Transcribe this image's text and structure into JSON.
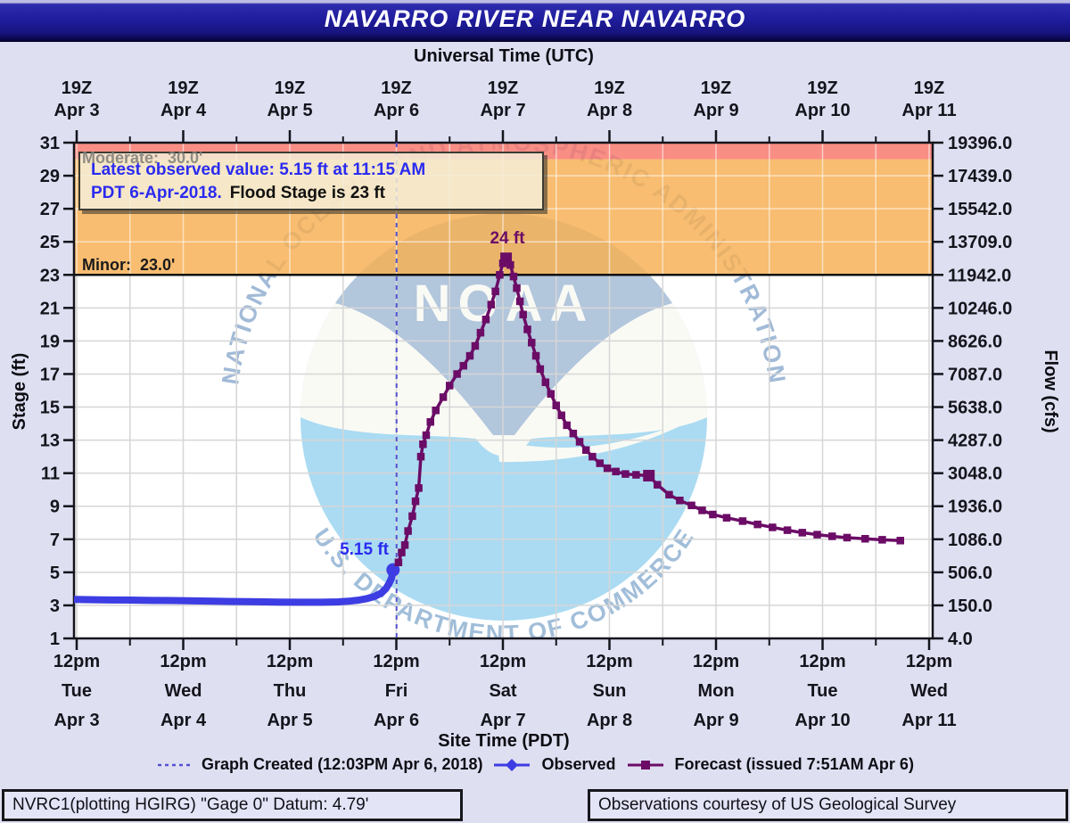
{
  "header": {
    "title": "NAVARRO RIVER NEAR NAVARRO"
  },
  "annotation": {
    "line1": "Latest observed value:  5.15 ft at 11:15 AM",
    "line2_blue": "PDT 6-Apr-2018.",
    "line2_black": "Flood Stage is 23  ft"
  },
  "flood_labels": {
    "moderate": "Moderate:  30.0'",
    "minor": "Minor:  23.0'"
  },
  "point_labels": {
    "peak": "24 ft",
    "latest": "5.15 ft"
  },
  "legend": {
    "created": "Graph Created (12:03PM Apr 6, 2018)",
    "observed": "Observed",
    "forecast": "Forecast (issued 7:51AM Apr 6)"
  },
  "footer": {
    "left": "NVRC1(plotting HGIRG) \"Gage 0\" Datum: 4.79'",
    "right": "Observations courtesy of US Geological Survey"
  },
  "watermark": {
    "name": "NOAA",
    "top": "NATIONAL OCEANIC AND ATMOSPHERIC ADMINISTRATION",
    "bottom": "U.S. DEPARTMENT OF COMMERCE"
  },
  "colors": {
    "page_bg": "#DFDFF2",
    "titlebar": "#1C1A96",
    "observed": "#3D3DE3",
    "forecast": "#6B0C66",
    "created_line": "#5353CE",
    "moderate_zone": "#F8776C",
    "minor_zone": "#F6B054",
    "annotation_bg": "#F4EED8",
    "label_blue": "#2B2BF0",
    "logo_cyan": "#A7DAF2",
    "logo_slate": "#AEC3DB"
  },
  "chart_data": {
    "type": "line",
    "title": "NAVARRO RIVER NEAR NAVARRO",
    "top_axis_label": "Universal Time (UTC)",
    "bottom_axis_label": "Site Time (PDT)",
    "left_axis_label": "Stage (ft)",
    "right_axis_label": "Flow (cfs)",
    "x_units": "days from Apr 3 12pm PDT",
    "xlim_days": [
      -0.025,
      8.03
    ],
    "stage_ylim": [
      1,
      31
    ],
    "grid": true,
    "legend_position": "bottom",
    "stage_ticks": [
      31,
      29,
      27,
      25,
      23,
      21,
      19,
      17,
      15,
      13,
      11,
      9,
      7,
      5,
      3,
      1
    ],
    "flow_tick_labels": [
      "19396.0",
      "17439.0",
      "15542.0",
      "13709.0",
      "11942.0",
      "10246.0",
      "8626.0",
      "7087.0",
      "5638.0",
      "4287.0",
      "3048.0",
      "1936.0",
      "1086.0",
      "506.0",
      "150.0",
      "4.0"
    ],
    "top_ticks": [
      {
        "z": "19Z",
        "date": "Apr 3"
      },
      {
        "z": "19Z",
        "date": "Apr 4"
      },
      {
        "z": "19Z",
        "date": "Apr 5"
      },
      {
        "z": "19Z",
        "date": "Apr 6"
      },
      {
        "z": "19Z",
        "date": "Apr 7"
      },
      {
        "z": "19Z",
        "date": "Apr 8"
      },
      {
        "z": "19Z",
        "date": "Apr 9"
      },
      {
        "z": "19Z",
        "date": "Apr 10"
      },
      {
        "z": "19Z",
        "date": "Apr 11"
      }
    ],
    "bottom_ticks": [
      {
        "time": "12pm",
        "day": "Tue",
        "date": "Apr 3"
      },
      {
        "time": "12pm",
        "day": "Wed",
        "date": "Apr 4"
      },
      {
        "time": "12pm",
        "day": "Thu",
        "date": "Apr 5"
      },
      {
        "time": "12pm",
        "day": "Fri",
        "date": "Apr 6"
      },
      {
        "time": "12pm",
        "day": "Sat",
        "date": "Apr 7"
      },
      {
        "time": "12pm",
        "day": "Sun",
        "date": "Apr 8"
      },
      {
        "time": "12pm",
        "day": "Mon",
        "date": "Apr 9"
      },
      {
        "time": "12pm",
        "day": "Tue",
        "date": "Apr 10"
      },
      {
        "time": "12pm",
        "day": "Wed",
        "date": "Apr 11"
      }
    ],
    "flood_stages": {
      "minor": 23.0,
      "moderate": 30.0
    },
    "graph_created_days": 3.002,
    "latest_observed": {
      "stage_ft": 5.15,
      "time": "11:15 AM PDT 6-Apr-2018"
    },
    "forecast_peak": {
      "stage_ft": 24,
      "days": 4.03
    },
    "series": [
      {
        "name": "Observed",
        "color": "#3D3DE3",
        "points": [
          [
            -0.02,
            3.36
          ],
          [
            0.1,
            3.35
          ],
          [
            0.3,
            3.33
          ],
          [
            0.5,
            3.32
          ],
          [
            0.7,
            3.3
          ],
          [
            0.9,
            3.29
          ],
          [
            1.1,
            3.27
          ],
          [
            1.3,
            3.25
          ],
          [
            1.5,
            3.23
          ],
          [
            1.7,
            3.22
          ],
          [
            1.9,
            3.2
          ],
          [
            2.1,
            3.19
          ],
          [
            2.3,
            3.19
          ],
          [
            2.45,
            3.21
          ],
          [
            2.55,
            3.25
          ],
          [
            2.65,
            3.32
          ],
          [
            2.73,
            3.42
          ],
          [
            2.8,
            3.55
          ],
          [
            2.86,
            3.75
          ],
          [
            2.9,
            4.0
          ],
          [
            2.93,
            4.3
          ],
          [
            2.955,
            4.65
          ],
          [
            2.969,
            5.15
          ]
        ]
      },
      {
        "name": "Forecast",
        "color": "#6B0C66",
        "major_marker_days": [
          4.03,
          5.37
        ],
        "points": [
          [
            3.02,
            5.6
          ],
          [
            3.05,
            6.2
          ],
          [
            3.08,
            6.65
          ],
          [
            3.11,
            7.5
          ],
          [
            3.15,
            8.4
          ],
          [
            3.18,
            9.3
          ],
          [
            3.21,
            10.1
          ],
          [
            3.23,
            12.0
          ],
          [
            3.25,
            12.75
          ],
          [
            3.28,
            13.3
          ],
          [
            3.32,
            14.1
          ],
          [
            3.37,
            14.8
          ],
          [
            3.44,
            15.6
          ],
          [
            3.5,
            16.3
          ],
          [
            3.57,
            17.0
          ],
          [
            3.63,
            17.5
          ],
          [
            3.69,
            18.1
          ],
          [
            3.74,
            18.7
          ],
          [
            3.79,
            19.5
          ],
          [
            3.84,
            20.3
          ],
          [
            3.89,
            21.2
          ],
          [
            3.93,
            22.0
          ],
          [
            3.97,
            23.0
          ],
          [
            4.0,
            23.7
          ],
          [
            4.03,
            24.0
          ],
          [
            4.07,
            23.6
          ],
          [
            4.1,
            22.9
          ],
          [
            4.13,
            22.2
          ],
          [
            4.16,
            21.4
          ],
          [
            4.19,
            20.6
          ],
          [
            4.23,
            19.7
          ],
          [
            4.27,
            18.9
          ],
          [
            4.31,
            18.1
          ],
          [
            4.35,
            17.3
          ],
          [
            4.4,
            16.5
          ],
          [
            4.45,
            15.8
          ],
          [
            4.5,
            15.1
          ],
          [
            4.55,
            14.5
          ],
          [
            4.6,
            13.9
          ],
          [
            4.66,
            13.4
          ],
          [
            4.72,
            12.9
          ],
          [
            4.78,
            12.4
          ],
          [
            4.84,
            12.0
          ],
          [
            4.91,
            11.6
          ],
          [
            4.98,
            11.3
          ],
          [
            5.06,
            11.1
          ],
          [
            5.15,
            10.95
          ],
          [
            5.25,
            10.9
          ],
          [
            5.37,
            10.85
          ],
          [
            5.45,
            10.3
          ],
          [
            5.56,
            9.7
          ],
          [
            5.66,
            9.35
          ],
          [
            5.77,
            9.05
          ],
          [
            5.87,
            8.75
          ],
          [
            5.97,
            8.5
          ],
          [
            6.1,
            8.3
          ],
          [
            6.25,
            8.1
          ],
          [
            6.39,
            7.9
          ],
          [
            6.53,
            7.72
          ],
          [
            6.67,
            7.55
          ],
          [
            6.81,
            7.4
          ],
          [
            6.95,
            7.28
          ],
          [
            7.09,
            7.18
          ],
          [
            7.23,
            7.1
          ],
          [
            7.4,
            7.03
          ],
          [
            7.56,
            6.97
          ],
          [
            7.73,
            6.92
          ]
        ]
      }
    ]
  }
}
